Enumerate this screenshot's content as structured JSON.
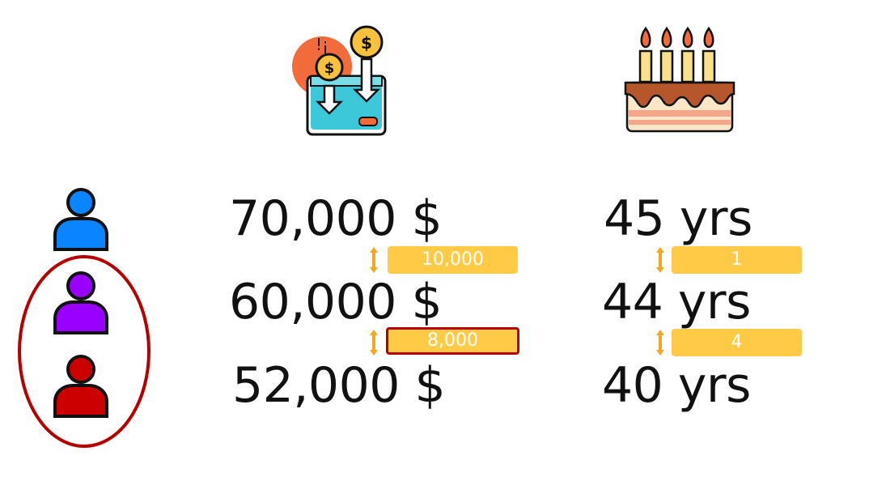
{
  "colors": {
    "diff_bar": "#FFCA45",
    "highlight_border": "#B60000",
    "arrow": "#F5A623",
    "person_blue": "#0A84FF",
    "person_purple": "#9900FF",
    "person_red": "#CC0000"
  },
  "icons": {
    "income": "wallet-with-coins-icon",
    "age": "birthday-cake-icon"
  },
  "people": [
    {
      "icon": "person-icon",
      "color": "blue",
      "income": "70,000 $",
      "age": "45 yrs"
    },
    {
      "icon": "person-icon",
      "color": "purple",
      "income": "60,000 $",
      "age": "44 yrs"
    },
    {
      "icon": "person-icon",
      "color": "red",
      "income": "52,000 $",
      "age": "40 yrs"
    }
  ],
  "income_differences": [
    "10,000",
    "8,000"
  ],
  "age_differences": [
    "1",
    "4"
  ],
  "highlight": {
    "group": [
      "purple",
      "red"
    ],
    "difference": "8,000"
  }
}
